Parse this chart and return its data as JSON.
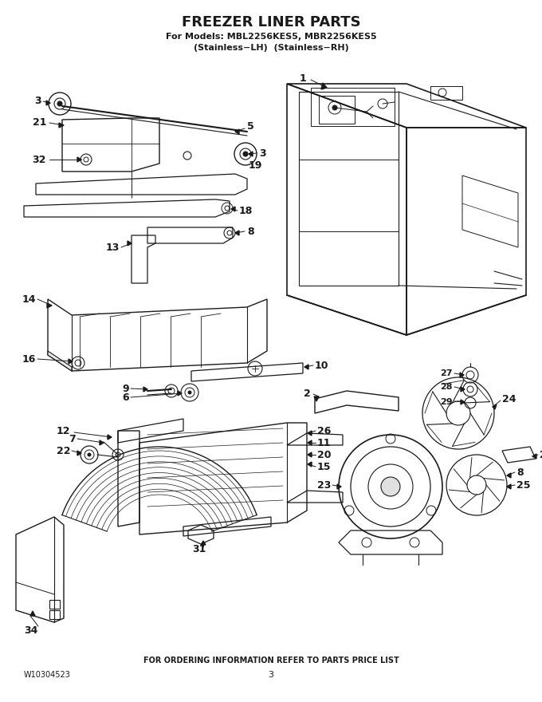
{
  "title_main": "FREEZER LINER PARTS",
  "title_sub1": "For Models: MBL2256KES5, MBR2256KES5",
  "title_sub2": "(Stainless−LH)  (Stainless−RH)",
  "footer_center": "FOR ORDERING INFORMATION REFER TO PARTS PRICE LIST",
  "footer_left": "W10304523",
  "footer_page": "3",
  "bg_color": "#ffffff",
  "lc": "#1a1a1a",
  "figw": 6.8,
  "figh": 8.8,
  "dpi": 100
}
